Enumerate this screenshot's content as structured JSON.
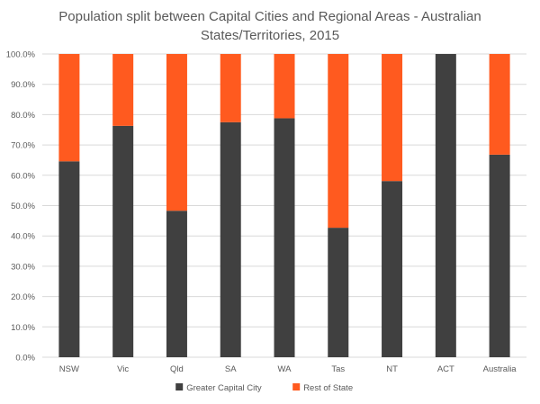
{
  "chart_data": {
    "type": "bar",
    "stacked": true,
    "title_lines": [
      "Population split between Capital Cities and Regional Areas - Australian",
      "States/Territories, 2015"
    ],
    "categories": [
      "NSW",
      "Vic",
      "Qld",
      "SA",
      "WA",
      "Tas",
      "NT",
      "ACT",
      "Australia"
    ],
    "series": [
      {
        "name": "Greater Capital City",
        "color": "#404040",
        "values": [
          64.6,
          76.3,
          48.3,
          77.5,
          78.8,
          42.7,
          58.1,
          100.0,
          66.8
        ]
      },
      {
        "name": "Rest of State",
        "color": "#ff5a1f",
        "values": [
          35.4,
          23.7,
          51.7,
          22.5,
          21.2,
          57.3,
          41.9,
          0.0,
          33.2
        ]
      }
    ],
    "y_ticks": [
      "0.0%",
      "10.0%",
      "20.0%",
      "30.0%",
      "40.0%",
      "50.0%",
      "60.0%",
      "70.0%",
      "80.0%",
      "90.0%",
      "100.0%"
    ],
    "ylim": [
      0,
      100
    ],
    "grid": true,
    "legend_position": "bottom"
  }
}
